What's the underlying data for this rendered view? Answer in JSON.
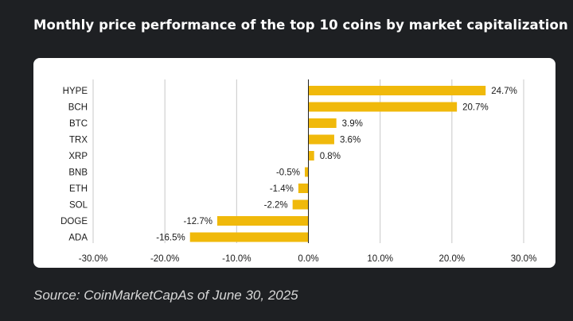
{
  "title": "Monthly price performance of the top 10 coins by market capitalization",
  "source": "Source: CoinMarketCapAs of June 30, 2025",
  "colors": {
    "bar": "#f0b90b",
    "background": "#1e2023",
    "card": "#ffffff",
    "grid": "#c8c8c8",
    "zero_line": "#222222"
  },
  "chart_data": {
    "type": "bar",
    "orientation": "horizontal",
    "categories": [
      "HYPE",
      "BCH",
      "BTC",
      "TRX",
      "XRP",
      "BNB",
      "ETH",
      "SOL",
      "DOGE",
      "ADA"
    ],
    "values": [
      24.7,
      20.7,
      3.9,
      3.6,
      0.8,
      -0.5,
      -1.4,
      -2.2,
      -12.7,
      -16.5
    ],
    "value_labels": [
      "24.7%",
      "20.7%",
      "3.9%",
      "3.6%",
      "0.8%",
      "-0.5%",
      "-1.4%",
      "-2.2%",
      "-12.7%",
      "-16.5%"
    ],
    "xlim": [
      -30,
      30
    ],
    "x_ticks": [
      -30,
      -20,
      -10,
      0,
      10,
      20,
      30
    ],
    "x_tick_labels": [
      "-30.0%",
      "-20.0%",
      "-10.0%",
      "0.0%",
      "10.0%",
      "20.0%",
      "30.0%"
    ],
    "grid": true,
    "legend": "none",
    "title": "Monthly price performance of the top 10 coins by market capitalization",
    "xlabel": "",
    "ylabel": ""
  }
}
